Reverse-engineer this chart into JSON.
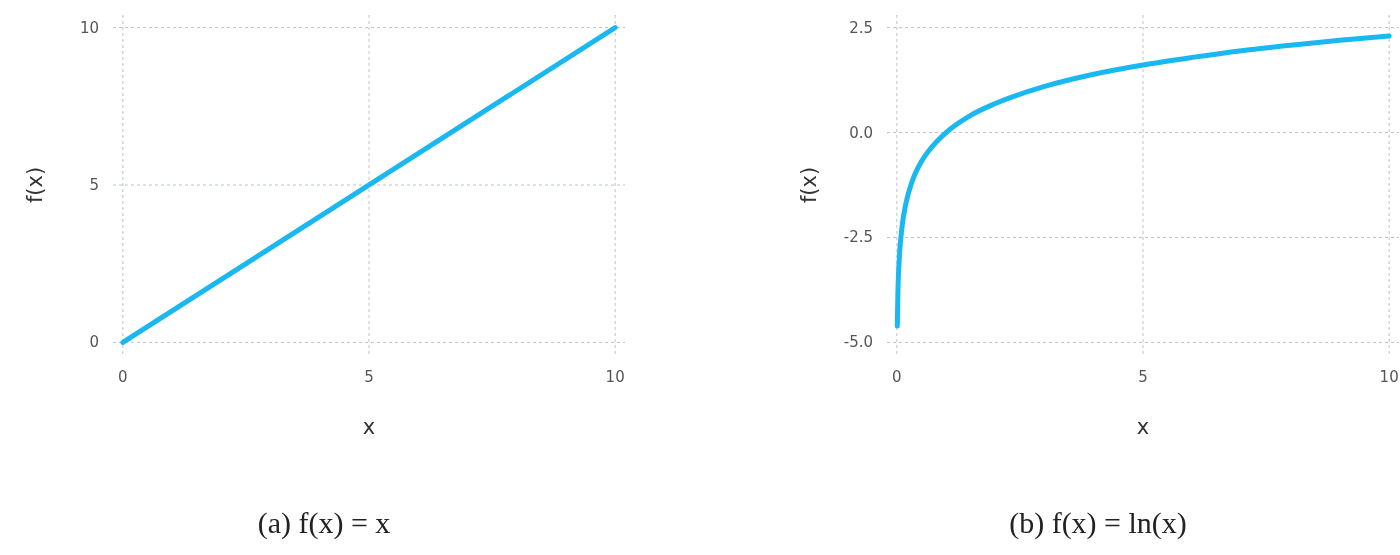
{
  "chart_data": [
    {
      "type": "line",
      "title": "(a) f(x) = x",
      "xlabel": "x",
      "ylabel": "f(x)",
      "x": [
        0,
        10
      ],
      "series": [
        {
          "color": "#1ab8f0",
          "values": [
            0,
            10
          ]
        }
      ],
      "xlim": [
        -0.2,
        10.2
      ],
      "ylim": [
        -0.4,
        10.4
      ],
      "xticks": [
        0,
        5,
        10
      ],
      "yticks": [
        0,
        5,
        10
      ],
      "grid": true
    },
    {
      "type": "line",
      "title": "(b) f(x) = ln(x)",
      "xlabel": "x",
      "ylabel": "f(x)",
      "x": [
        0.01,
        0.02,
        0.05,
        0.1,
        0.2,
        0.3,
        0.5,
        0.7,
        1,
        1.5,
        2,
        3,
        4,
        5,
        6,
        7,
        8,
        9,
        10
      ],
      "series": [
        {
          "color": "#1ab8f0",
          "values": [
            -4.61,
            -3.91,
            -3.0,
            -2.3,
            -1.61,
            -1.2,
            -0.69,
            -0.36,
            0,
            0.41,
            0.69,
            1.1,
            1.39,
            1.61,
            1.79,
            1.95,
            2.08,
            2.2,
            2.3
          ]
        }
      ],
      "xlim": [
        -0.2,
        10.2
      ],
      "ylim": [
        -5.3,
        2.8
      ],
      "xticks": [
        0,
        5,
        10
      ],
      "yticks": [
        {
          "value": 2.5,
          "label": "2.5"
        },
        {
          "value": 0,
          "label": "0.0"
        },
        {
          "value": -2.5,
          "label": "-2.5"
        },
        {
          "value": -5,
          "label": "-5.0"
        }
      ],
      "grid": true
    }
  ]
}
